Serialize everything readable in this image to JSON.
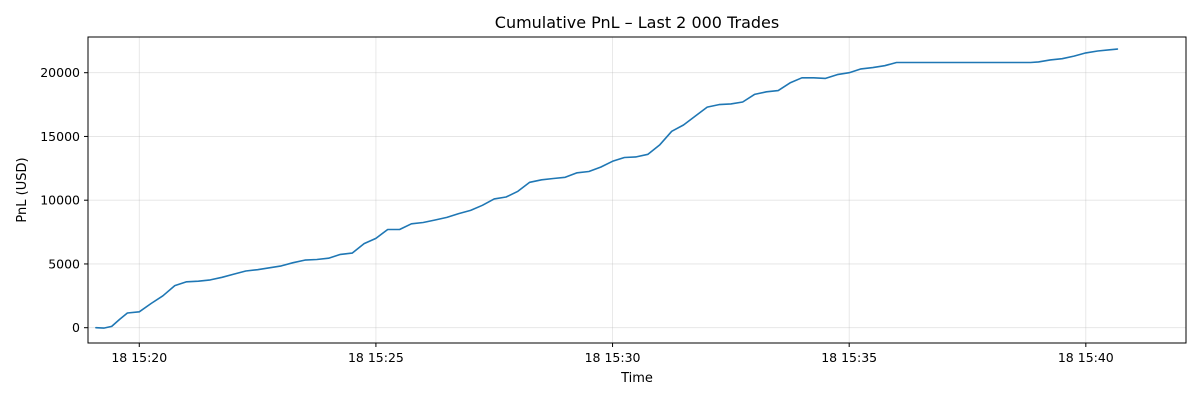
{
  "chart_data": {
    "type": "line",
    "title": "Cumulative PnL – Last 2 000 Trades",
    "xlabel": "Time",
    "ylabel": "PnL (USD)",
    "grid": true,
    "xlim": [
      "15:18:55",
      "15:42:07"
    ],
    "ylim": [
      -1200,
      22800
    ],
    "x_ticks": [
      {
        "label": "18 15:20",
        "time": "15:20:00"
      },
      {
        "label": "18 15:25",
        "time": "15:25:00"
      },
      {
        "label": "18 15:30",
        "time": "15:30:00"
      },
      {
        "label": "18 15:35",
        "time": "15:35:00"
      },
      {
        "label": "18 15:40",
        "time": "15:40:00"
      }
    ],
    "y_ticks": [
      {
        "label": "0",
        "value": 0
      },
      {
        "label": "5000",
        "value": 5000
      },
      {
        "label": "10000",
        "value": 10000
      },
      {
        "label": "15000",
        "value": 15000
      },
      {
        "label": "20000",
        "value": 20000
      }
    ],
    "series": [
      {
        "color": "#1f77b4",
        "x": [
          "15:19:05",
          "15:19:15",
          "15:19:25",
          "15:19:35",
          "15:19:45",
          "15:20:00",
          "15:20:15",
          "15:20:30",
          "15:20:45",
          "15:21:00",
          "15:21:15",
          "15:21:30",
          "15:21:45",
          "15:22:00",
          "15:22:15",
          "15:22:30",
          "15:22:45",
          "15:23:00",
          "15:23:15",
          "15:23:30",
          "15:23:45",
          "15:24:00",
          "15:24:15",
          "15:24:30",
          "15:24:45",
          "15:25:00",
          "15:25:15",
          "15:25:30",
          "15:25:45",
          "15:26:00",
          "15:26:15",
          "15:26:30",
          "15:26:45",
          "15:27:00",
          "15:27:15",
          "15:27:30",
          "15:27:45",
          "15:28:00",
          "15:28:15",
          "15:28:30",
          "15:28:45",
          "15:29:00",
          "15:29:15",
          "15:29:30",
          "15:29:45",
          "15:30:00",
          "15:30:15",
          "15:30:30",
          "15:30:45",
          "15:31:00",
          "15:31:15",
          "15:31:30",
          "15:31:45",
          "15:32:00",
          "15:32:15",
          "15:32:30",
          "15:32:45",
          "15:33:00",
          "15:33:15",
          "15:33:30",
          "15:33:45",
          "15:34:00",
          "15:34:15",
          "15:34:30",
          "15:34:45",
          "15:35:00",
          "15:35:15",
          "15:35:30",
          "15:35:45",
          "15:36:00",
          "15:36:15",
          "15:36:30",
          "15:38:50",
          "15:39:00",
          "15:39:15",
          "15:39:30",
          "15:39:45",
          "15:40:00",
          "15:40:15",
          "15:40:30",
          "15:40:40"
        ],
        "y": [
          0,
          -30,
          100,
          650,
          1150,
          1250,
          1900,
          2500,
          3300,
          3600,
          3650,
          3750,
          3950,
          4200,
          4450,
          4550,
          4700,
          4850,
          5100,
          5300,
          5350,
          5450,
          5750,
          5850,
          6600,
          7000,
          7700,
          7700,
          8150,
          8250,
          8450,
          8650,
          8950,
          9200,
          9600,
          10100,
          10250,
          10700,
          11400,
          11600,
          11700,
          11800,
          12150,
          12250,
          12600,
          13050,
          13350,
          13400,
          13600,
          14350,
          15400,
          15900,
          16600,
          17300,
          17500,
          17550,
          17700,
          18300,
          18500,
          18600,
          19200,
          19600,
          19600,
          19550,
          19850,
          20000,
          20300,
          20400,
          20550,
          20800,
          20800,
          20800,
          20800,
          20850,
          21000,
          21100,
          21300,
          21550,
          21700,
          21800,
          21850
        ]
      }
    ]
  }
}
